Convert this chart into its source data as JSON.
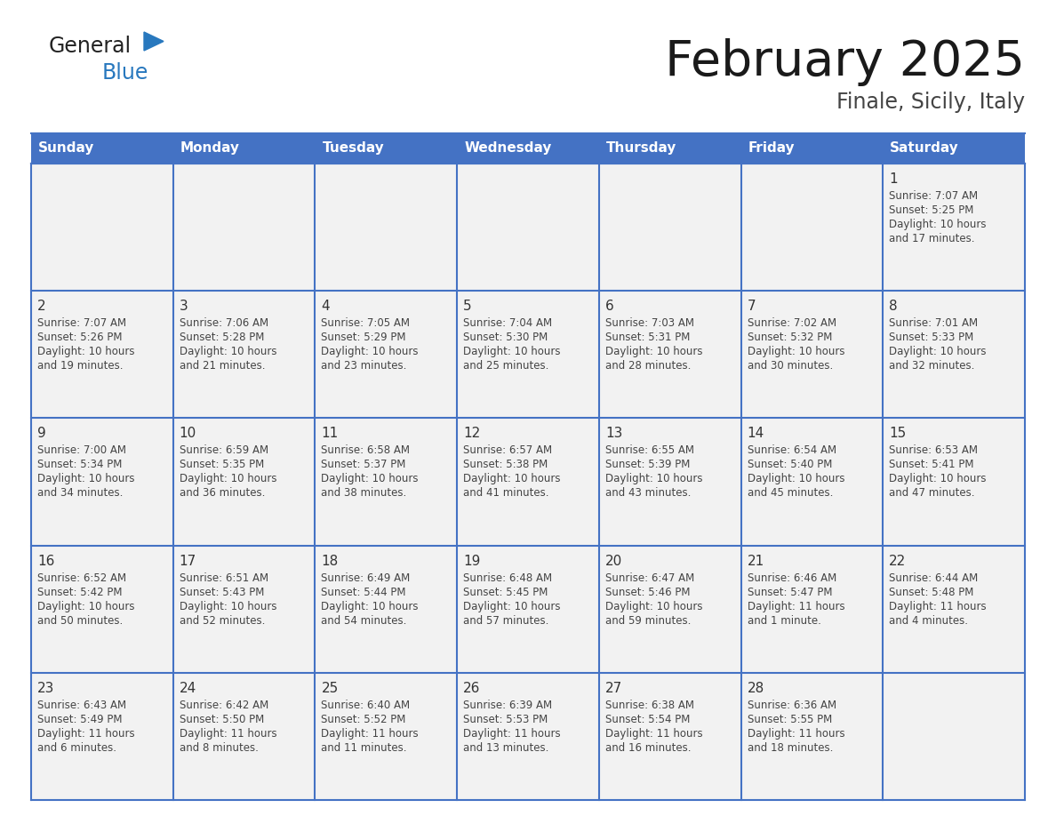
{
  "title": "February 2025",
  "subtitle": "Finale, Sicily, Italy",
  "header_bg": "#4472C4",
  "header_text_color": "#FFFFFF",
  "day_names": [
    "Sunday",
    "Monday",
    "Tuesday",
    "Wednesday",
    "Thursday",
    "Friday",
    "Saturday"
  ],
  "cell_bg": "#F2F2F2",
  "border_color": "#4472C4",
  "text_color": "#444444",
  "number_color": "#333333",
  "logo_general_color": "#222222",
  "logo_blue_color": "#2878BE",
  "title_color": "#1a1a1a",
  "subtitle_color": "#444444",
  "weeks": [
    [
      null,
      null,
      null,
      null,
      null,
      null,
      {
        "day": 1,
        "sunrise": "7:07 AM",
        "sunset": "5:25 PM",
        "daylight": "10 hours and 17 minutes."
      }
    ],
    [
      {
        "day": 2,
        "sunrise": "7:07 AM",
        "sunset": "5:26 PM",
        "daylight": "10 hours and 19 minutes."
      },
      {
        "day": 3,
        "sunrise": "7:06 AM",
        "sunset": "5:28 PM",
        "daylight": "10 hours and 21 minutes."
      },
      {
        "day": 4,
        "sunrise": "7:05 AM",
        "sunset": "5:29 PM",
        "daylight": "10 hours and 23 minutes."
      },
      {
        "day": 5,
        "sunrise": "7:04 AM",
        "sunset": "5:30 PM",
        "daylight": "10 hours and 25 minutes."
      },
      {
        "day": 6,
        "sunrise": "7:03 AM",
        "sunset": "5:31 PM",
        "daylight": "10 hours and 28 minutes."
      },
      {
        "day": 7,
        "sunrise": "7:02 AM",
        "sunset": "5:32 PM",
        "daylight": "10 hours and 30 minutes."
      },
      {
        "day": 8,
        "sunrise": "7:01 AM",
        "sunset": "5:33 PM",
        "daylight": "10 hours and 32 minutes."
      }
    ],
    [
      {
        "day": 9,
        "sunrise": "7:00 AM",
        "sunset": "5:34 PM",
        "daylight": "10 hours and 34 minutes."
      },
      {
        "day": 10,
        "sunrise": "6:59 AM",
        "sunset": "5:35 PM",
        "daylight": "10 hours and 36 minutes."
      },
      {
        "day": 11,
        "sunrise": "6:58 AM",
        "sunset": "5:37 PM",
        "daylight": "10 hours and 38 minutes."
      },
      {
        "day": 12,
        "sunrise": "6:57 AM",
        "sunset": "5:38 PM",
        "daylight": "10 hours and 41 minutes."
      },
      {
        "day": 13,
        "sunrise": "6:55 AM",
        "sunset": "5:39 PM",
        "daylight": "10 hours and 43 minutes."
      },
      {
        "day": 14,
        "sunrise": "6:54 AM",
        "sunset": "5:40 PM",
        "daylight": "10 hours and 45 minutes."
      },
      {
        "day": 15,
        "sunrise": "6:53 AM",
        "sunset": "5:41 PM",
        "daylight": "10 hours and 47 minutes."
      }
    ],
    [
      {
        "day": 16,
        "sunrise": "6:52 AM",
        "sunset": "5:42 PM",
        "daylight": "10 hours and 50 minutes."
      },
      {
        "day": 17,
        "sunrise": "6:51 AM",
        "sunset": "5:43 PM",
        "daylight": "10 hours and 52 minutes."
      },
      {
        "day": 18,
        "sunrise": "6:49 AM",
        "sunset": "5:44 PM",
        "daylight": "10 hours and 54 minutes."
      },
      {
        "day": 19,
        "sunrise": "6:48 AM",
        "sunset": "5:45 PM",
        "daylight": "10 hours and 57 minutes."
      },
      {
        "day": 20,
        "sunrise": "6:47 AM",
        "sunset": "5:46 PM",
        "daylight": "10 hours and 59 minutes."
      },
      {
        "day": 21,
        "sunrise": "6:46 AM",
        "sunset": "5:47 PM",
        "daylight": "11 hours and 1 minute."
      },
      {
        "day": 22,
        "sunrise": "6:44 AM",
        "sunset": "5:48 PM",
        "daylight": "11 hours and 4 minutes."
      }
    ],
    [
      {
        "day": 23,
        "sunrise": "6:43 AM",
        "sunset": "5:49 PM",
        "daylight": "11 hours and 6 minutes."
      },
      {
        "day": 24,
        "sunrise": "6:42 AM",
        "sunset": "5:50 PM",
        "daylight": "11 hours and 8 minutes."
      },
      {
        "day": 25,
        "sunrise": "6:40 AM",
        "sunset": "5:52 PM",
        "daylight": "11 hours and 11 minutes."
      },
      {
        "day": 26,
        "sunrise": "6:39 AM",
        "sunset": "5:53 PM",
        "daylight": "11 hours and 13 minutes."
      },
      {
        "day": 27,
        "sunrise": "6:38 AM",
        "sunset": "5:54 PM",
        "daylight": "11 hours and 16 minutes."
      },
      {
        "day": 28,
        "sunrise": "6:36 AM",
        "sunset": "5:55 PM",
        "daylight": "11 hours and 18 minutes."
      },
      null
    ]
  ]
}
